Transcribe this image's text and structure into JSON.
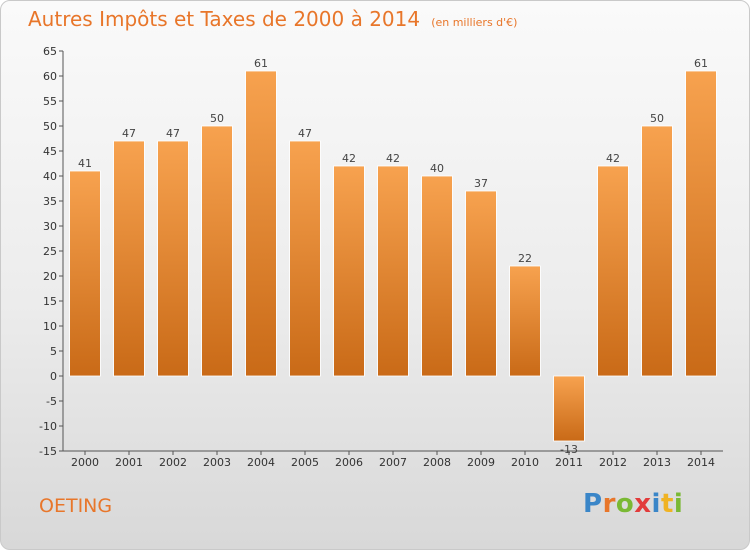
{
  "title": "Autres Impôts et Taxes de 2000 à 2014",
  "subtitle": "(en milliers d'€)",
  "commune": "OETING",
  "brand": {
    "letters": [
      {
        "char": "P",
        "color": "#3a86c8"
      },
      {
        "char": "r",
        "color": "#e8762a"
      },
      {
        "char": "o",
        "color": "#7ab934"
      },
      {
        "char": "x",
        "color": "#e23b3b"
      },
      {
        "char": "i",
        "color": "#3a86c8"
      },
      {
        "char": "t",
        "color": "#f0b323"
      },
      {
        "char": "i",
        "color": "#7ab934"
      }
    ]
  },
  "chart_data": {
    "type": "bar",
    "title": "Autres Impôts et Taxes de 2000 à 2014",
    "subtitle": "(en milliers d'€)",
    "categories": [
      "2000",
      "2001",
      "2002",
      "2003",
      "2004",
      "2005",
      "2006",
      "2007",
      "2008",
      "2009",
      "2010",
      "2011",
      "2012",
      "2013",
      "2014"
    ],
    "values": [
      41,
      47,
      47,
      50,
      61,
      47,
      42,
      42,
      40,
      37,
      22,
      -13,
      42,
      50,
      61
    ],
    "ylim": [
      -15,
      65
    ],
    "yticks": [
      -15,
      -10,
      -5,
      0,
      5,
      10,
      15,
      20,
      25,
      30,
      35,
      40,
      45,
      50,
      55,
      60,
      65
    ],
    "grid": false,
    "bar_color_top": "#f7a24f",
    "bar_color_bottom": "#c96a17"
  }
}
